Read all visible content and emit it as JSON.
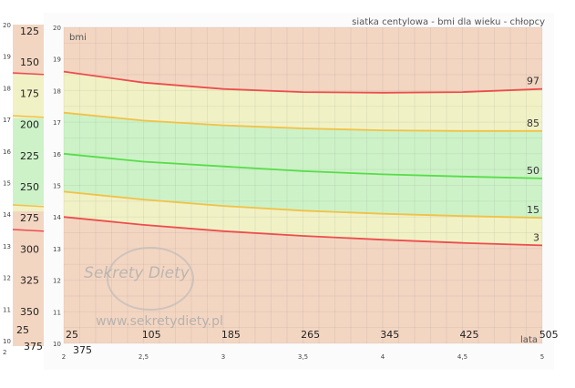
{
  "chart_data": {
    "type": "line",
    "title": "siatka centylowa - bmi dla wieku - chłopcy",
    "ylabel": "bmi",
    "xlabel": "lata",
    "ylim": [
      10,
      20
    ],
    "xlim": [
      2,
      5
    ],
    "y_ticks": [
      "10",
      "11",
      "12",
      "13",
      "14",
      "15",
      "16",
      "17",
      "18",
      "19",
      "20"
    ],
    "x_ticks": [
      "2",
      "2,5",
      "3",
      "3,5",
      "4",
      "4,5",
      "5"
    ],
    "x": [
      2,
      2.5,
      3,
      3.5,
      4,
      4.5,
      5
    ],
    "series": [
      {
        "name": "97",
        "values": [
          18.6,
          18.25,
          18.05,
          17.95,
          17.93,
          17.95,
          18.05
        ]
      },
      {
        "name": "85",
        "values": [
          17.3,
          17.05,
          16.9,
          16.8,
          16.74,
          16.72,
          16.72
        ]
      },
      {
        "name": "50",
        "values": [
          16.0,
          15.75,
          15.6,
          15.45,
          15.35,
          15.28,
          15.22
        ]
      },
      {
        "name": "15",
        "values": [
          14.8,
          14.55,
          14.35,
          14.2,
          14.1,
          14.03,
          13.97
        ]
      },
      {
        "name": "3",
        "values": [
          14.0,
          13.75,
          13.55,
          13.4,
          13.28,
          13.18,
          13.1
        ]
      }
    ],
    "zones": [
      "#f3d6c2",
      "#f1f1c6",
      "#cdf2c8"
    ],
    "line_colors": {
      "97": "#ec4d4d",
      "85": "#f0c246",
      "50": "#57dd48",
      "15": "#f0c246",
      "3": "#ec4d4d"
    },
    "grid": true
  },
  "inner_x_labels": [
    "25",
    "105",
    "185",
    "265",
    "345",
    "425",
    "505"
  ],
  "inner_x_label_extra": "375",
  "ghost_labels": [
    "125",
    "150",
    "175",
    "200",
    "225",
    "250",
    "275",
    "300",
    "325",
    "350",
    "25",
    "375"
  ],
  "back_y_ticks": [
    "20",
    "19",
    "18",
    "17",
    "16",
    "15",
    "14",
    "13",
    "12",
    "11",
    "10",
    "2"
  ],
  "watermark": {
    "brand": "Sekrety Diety",
    "url": "www.sekretydiety.pl"
  }
}
